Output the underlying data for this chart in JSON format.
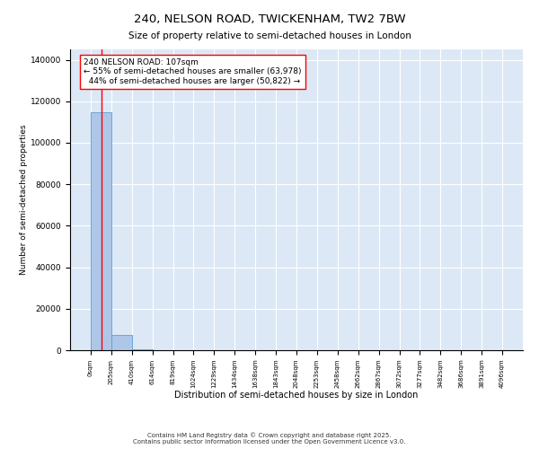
{
  "title_line1": "240, NELSON ROAD, TWICKENHAM, TW2 7BW",
  "title_line2": "Size of property relative to semi-detached houses in London",
  "xlabel": "Distribution of semi-detached houses by size in London",
  "ylabel": "Number of semi-detached properties",
  "property_size": 107,
  "property_label": "240 NELSON ROAD: 107sqm",
  "pct_smaller": 55,
  "count_smaller": 63978,
  "pct_larger": 44,
  "count_larger": 50822,
  "bar_edges": [
    0,
    205,
    410,
    614,
    819,
    1024,
    1229,
    1434,
    1638,
    1843,
    2048,
    2253,
    2458,
    2662,
    2867,
    3072,
    3277,
    3482,
    3686,
    3891,
    4096
  ],
  "bar_heights": [
    114800,
    7200,
    600,
    150,
    80,
    50,
    35,
    25,
    20,
    15,
    12,
    10,
    8,
    7,
    6,
    5,
    5,
    4,
    4,
    3
  ],
  "bar_color": "#aec6e8",
  "bar_edge_color": "#5a9fd4",
  "red_line_x": 107,
  "ylim": [
    0,
    145000
  ],
  "yticks": [
    0,
    20000,
    40000,
    60000,
    80000,
    100000,
    120000,
    140000
  ],
  "background_color": "#dce8f5",
  "grid_color": "#ffffff",
  "footer_line1": "Contains HM Land Registry data © Crown copyright and database right 2025.",
  "footer_line2": "Contains public sector information licensed under the Open Government Licence v3.0."
}
